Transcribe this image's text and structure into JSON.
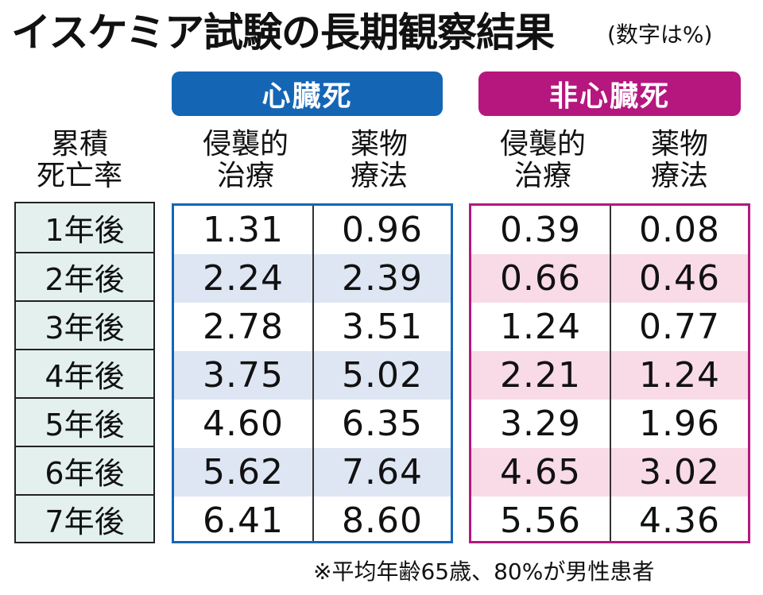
{
  "title": "イスケミア試験の長期観察結果",
  "unit_note": "(数字は%)",
  "footnote": "※平均年齢65歳、80%が男性患者",
  "colors": {
    "cardiac": "#1466b5",
    "noncardiac": "#b5177e",
    "label_bg": "#e3f0ee",
    "cardiac_stripe": "#dfe6f3",
    "noncardiac_stripe": "#f8dbe7"
  },
  "chart_data": {
    "type": "table",
    "row_header": "累積\n死亡率",
    "rows": [
      "1年後",
      "2年後",
      "3年後",
      "4年後",
      "5年後",
      "6年後",
      "7年後"
    ],
    "groups": [
      {
        "name": "心臓死",
        "columns": [
          {
            "name": "侵襲的\n治療",
            "values": [
              1.31,
              2.24,
              2.78,
              3.75,
              4.6,
              5.62,
              6.41
            ]
          },
          {
            "name": "薬物\n療法",
            "values": [
              0.96,
              2.39,
              3.51,
              5.02,
              6.35,
              7.64,
              8.6
            ]
          }
        ]
      },
      {
        "name": "非心臓死",
        "columns": [
          {
            "name": "侵襲的\n治療",
            "values": [
              0.39,
              0.66,
              1.24,
              2.21,
              3.29,
              4.65,
              5.56
            ]
          },
          {
            "name": "薬物\n療法",
            "values": [
              0.08,
              0.46,
              0.77,
              1.24,
              1.96,
              3.02,
              4.36
            ]
          }
        ]
      }
    ]
  }
}
